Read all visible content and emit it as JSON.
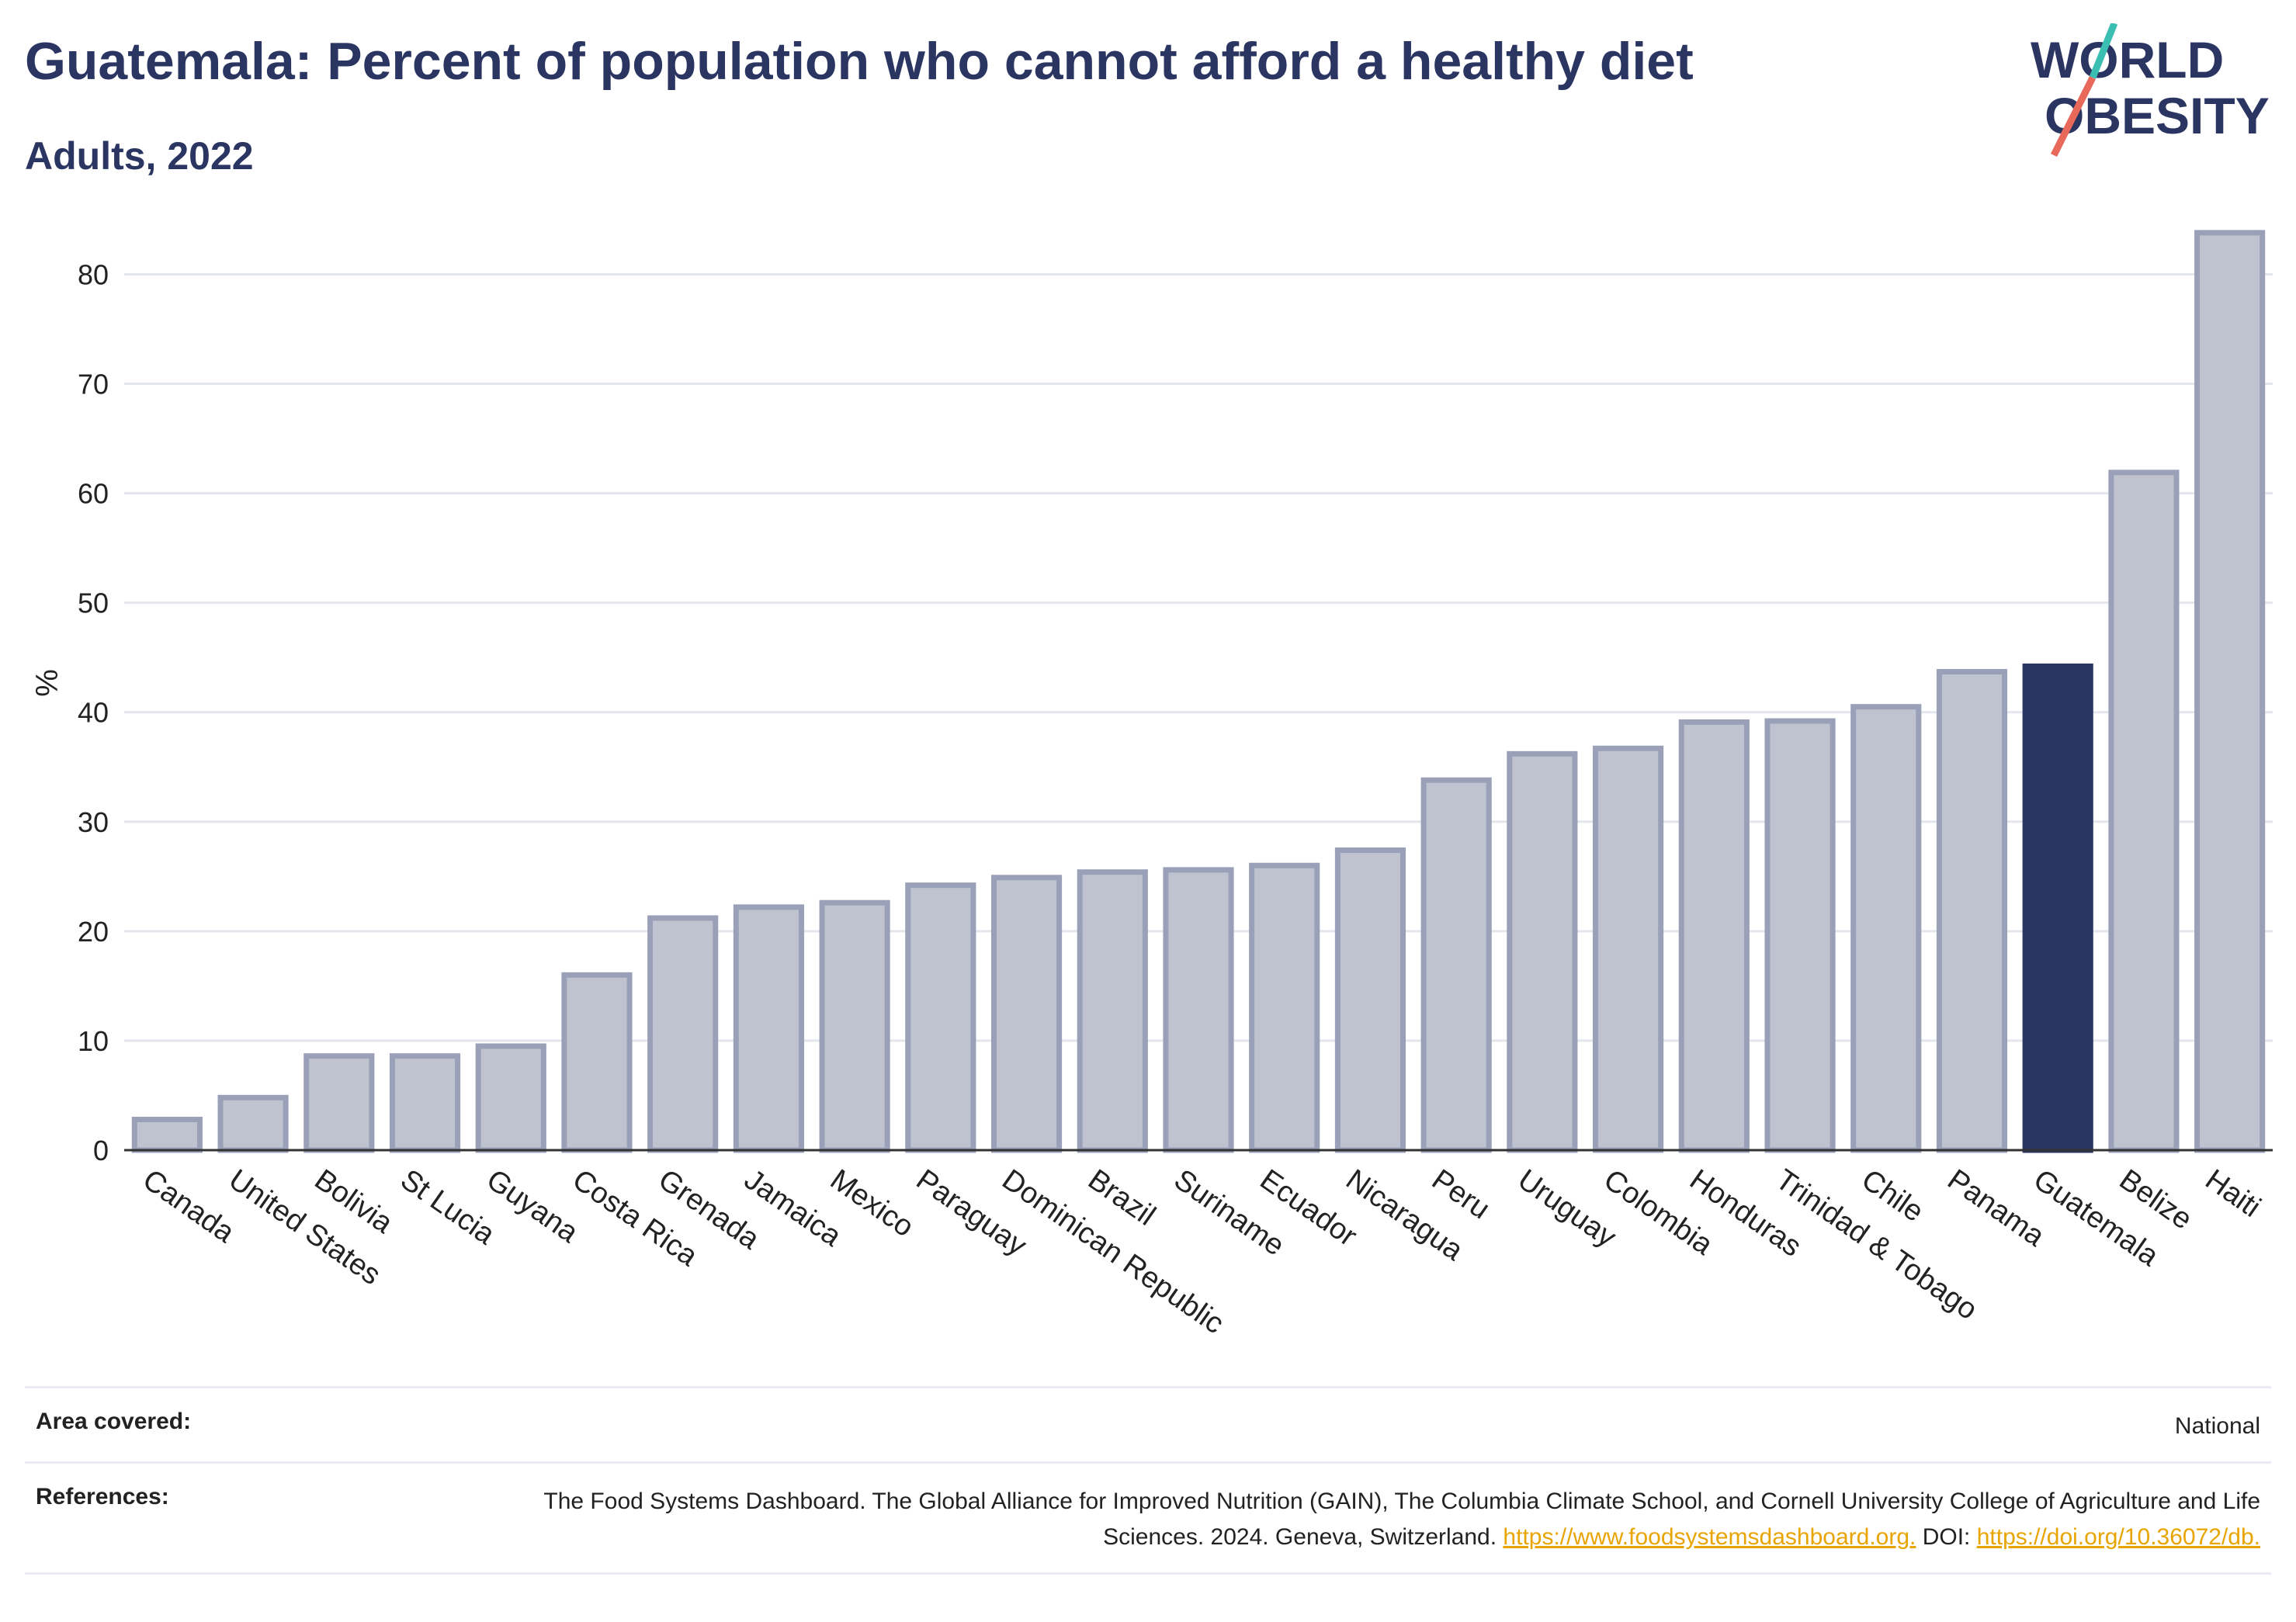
{
  "header": {
    "title": "Guatemala: Percent of population who cannot afford a healthy diet",
    "subtitle": "Adults, 2022"
  },
  "logo": {
    "line1": "WORLD",
    "line2": "OBESITY",
    "colors": {
      "text": "#2b3562",
      "slash_teal": "#3bbfb3",
      "slash_coral": "#e8685a"
    }
  },
  "chart_data": {
    "type": "bar",
    "title": "Guatemala: Percent of population who cannot afford a healthy diet",
    "subtitle": "Adults, 2022",
    "ylabel": "%",
    "ylim": [
      0,
      84
    ],
    "yticks": [
      0,
      10,
      20,
      30,
      40,
      50,
      60,
      70,
      80
    ],
    "categories": [
      "Canada",
      "United States",
      "Bolivia",
      "St Lucia",
      "Guyana",
      "Costa Rica",
      "Grenada",
      "Jamaica",
      "Mexico",
      "Paraguay",
      "Dominican Republic",
      "Brazil",
      "Suriname",
      "Ecuador",
      "Nicaragua",
      "Peru",
      "Uruguay",
      "Colombia",
      "Honduras",
      "Trinidad & Tobago",
      "Chile",
      "Panama",
      "Guatemala",
      "Belize",
      "Haiti"
    ],
    "values": [
      2.8,
      4.8,
      8.6,
      8.6,
      9.5,
      16.0,
      21.2,
      22.2,
      22.6,
      24.2,
      24.9,
      25.4,
      25.6,
      26.0,
      27.4,
      33.8,
      36.2,
      36.7,
      39.1,
      39.2,
      40.5,
      43.7,
      44.2,
      61.9,
      83.8
    ],
    "highlight": "Guatemala",
    "colors": {
      "bar": "#bfc3d0",
      "bar_border": "#9aa0b8",
      "highlight": "#2b3562"
    },
    "grid": true
  },
  "meta": {
    "area_label": "Area covered:",
    "area_value": "National",
    "ref_label": "References:",
    "ref_text": "The Food Systems Dashboard. The Global Alliance for Improved Nutrition (GAIN), The Columbia Climate School, and Cornell University College of Agriculture and Life Sciences. 2024. Geneva, Switzerland.",
    "ref_link1": "https://www.foodsystemsdashboard.org.",
    "ref_doi_label": "DOI:",
    "ref_link2": "https://doi.org/10.36072/db."
  }
}
